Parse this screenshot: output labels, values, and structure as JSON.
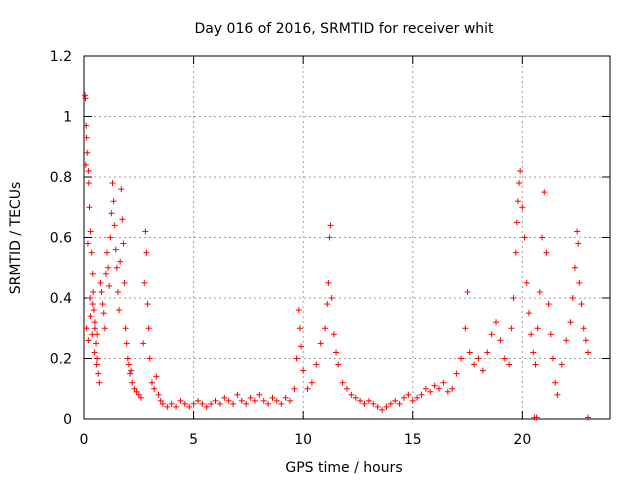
{
  "chart_data": {
    "type": "scatter",
    "title": "Day 016 of 2016, SRMTID for receiver whit",
    "xlabel": "GPS time / hours",
    "ylabel": "SRMTID / TECUs",
    "xlim": [
      0,
      24
    ],
    "ylim": [
      0,
      1.2
    ],
    "xticks": [
      "0",
      "5",
      "10",
      "15",
      "20"
    ],
    "yticks": [
      "0",
      "0.2",
      "0.4",
      "0.6",
      "0.8",
      "1",
      "1.2"
    ],
    "grid": true,
    "marker": "+",
    "marker_color": "#ff0000",
    "series": [
      {
        "name": "SRMTID",
        "points": [
          [
            0.05,
            1.07
          ],
          [
            0.07,
            1.06
          ],
          [
            0.1,
            0.97
          ],
          [
            0.12,
            0.93
          ],
          [
            0.15,
            0.88
          ],
          [
            0.2,
            0.82
          ],
          [
            0.22,
            0.78
          ],
          [
            0.25,
            0.7
          ],
          [
            0.3,
            0.62
          ],
          [
            0.35,
            0.55
          ],
          [
            0.4,
            0.48
          ],
          [
            0.42,
            0.42
          ],
          [
            0.45,
            0.36
          ],
          [
            0.5,
            0.3
          ],
          [
            0.55,
            0.25
          ],
          [
            0.6,
            0.2
          ],
          [
            0.65,
            0.15
          ],
          [
            0.7,
            0.12
          ],
          [
            0.08,
            0.84
          ],
          [
            0.18,
            0.58
          ],
          [
            0.28,
            0.4
          ],
          [
            0.38,
            0.28
          ],
          [
            0.48,
            0.22
          ],
          [
            0.58,
            0.18
          ],
          [
            0.12,
            0.3
          ],
          [
            0.2,
            0.26
          ],
          [
            0.3,
            0.34
          ],
          [
            0.4,
            0.38
          ],
          [
            0.5,
            0.32
          ],
          [
            0.6,
            0.28
          ],
          [
            0.75,
            0.45
          ],
          [
            0.8,
            0.42
          ],
          [
            0.85,
            0.38
          ],
          [
            0.9,
            0.35
          ],
          [
            0.95,
            0.3
          ],
          [
            1.0,
            0.48
          ],
          [
            1.05,
            0.55
          ],
          [
            1.1,
            0.5
          ],
          [
            1.15,
            0.44
          ],
          [
            1.2,
            0.6
          ],
          [
            1.25,
            0.68
          ],
          [
            1.3,
            0.78
          ],
          [
            1.35,
            0.72
          ],
          [
            1.4,
            0.64
          ],
          [
            1.45,
            0.56
          ],
          [
            1.5,
            0.5
          ],
          [
            1.55,
            0.42
          ],
          [
            1.6,
            0.36
          ],
          [
            1.65,
            0.52
          ],
          [
            1.7,
            0.76
          ],
          [
            1.75,
            0.66
          ],
          [
            1.8,
            0.58
          ],
          [
            1.85,
            0.45
          ],
          [
            1.9,
            0.3
          ],
          [
            1.95,
            0.25
          ],
          [
            2.0,
            0.2
          ],
          [
            2.05,
            0.18
          ],
          [
            2.1,
            0.15
          ],
          [
            2.15,
            0.16
          ],
          [
            2.2,
            0.12
          ],
          [
            2.3,
            0.1
          ],
          [
            2.4,
            0.09
          ],
          [
            2.5,
            0.08
          ],
          [
            2.6,
            0.07
          ],
          [
            2.7,
            0.25
          ],
          [
            2.75,
            0.45
          ],
          [
            2.8,
            0.62
          ],
          [
            2.85,
            0.55
          ],
          [
            2.9,
            0.38
          ],
          [
            2.95,
            0.3
          ],
          [
            3.0,
            0.2
          ],
          [
            3.1,
            0.12
          ],
          [
            3.2,
            0.1
          ],
          [
            3.3,
            0.14
          ],
          [
            3.4,
            0.08
          ],
          [
            3.5,
            0.06
          ],
          [
            3.6,
            0.05
          ],
          [
            3.8,
            0.04
          ],
          [
            4.0,
            0.05
          ],
          [
            4.2,
            0.04
          ],
          [
            4.4,
            0.06
          ],
          [
            4.6,
            0.05
          ],
          [
            4.8,
            0.04
          ],
          [
            5.0,
            0.05
          ],
          [
            5.2,
            0.06
          ],
          [
            5.4,
            0.05
          ],
          [
            5.6,
            0.04
          ],
          [
            5.8,
            0.05
          ],
          [
            6.0,
            0.06
          ],
          [
            6.2,
            0.05
          ],
          [
            6.4,
            0.07
          ],
          [
            6.6,
            0.06
          ],
          [
            6.8,
            0.05
          ],
          [
            7.0,
            0.08
          ],
          [
            7.2,
            0.06
          ],
          [
            7.4,
            0.05
          ],
          [
            7.6,
            0.07
          ],
          [
            7.8,
            0.06
          ],
          [
            8.0,
            0.08
          ],
          [
            8.2,
            0.06
          ],
          [
            8.4,
            0.05
          ],
          [
            8.6,
            0.07
          ],
          [
            8.8,
            0.06
          ],
          [
            9.0,
            0.05
          ],
          [
            9.2,
            0.07
          ],
          [
            9.4,
            0.06
          ],
          [
            9.6,
            0.1
          ],
          [
            9.7,
            0.2
          ],
          [
            9.8,
            0.36
          ],
          [
            9.85,
            0.3
          ],
          [
            9.9,
            0.24
          ],
          [
            10.0,
            0.16
          ],
          [
            10.2,
            0.1
          ],
          [
            10.4,
            0.12
          ],
          [
            10.6,
            0.18
          ],
          [
            10.8,
            0.25
          ],
          [
            11.0,
            0.3
          ],
          [
            11.1,
            0.38
          ],
          [
            11.15,
            0.45
          ],
          [
            11.2,
            0.6
          ],
          [
            11.25,
            0.64
          ],
          [
            11.3,
            0.4
          ],
          [
            11.4,
            0.28
          ],
          [
            11.5,
            0.22
          ],
          [
            11.6,
            0.18
          ],
          [
            11.8,
            0.12
          ],
          [
            12.0,
            0.1
          ],
          [
            12.2,
            0.08
          ],
          [
            12.4,
            0.07
          ],
          [
            12.6,
            0.06
          ],
          [
            12.8,
            0.05
          ],
          [
            13.0,
            0.06
          ],
          [
            13.2,
            0.05
          ],
          [
            13.4,
            0.04
          ],
          [
            13.6,
            0.03
          ],
          [
            13.8,
            0.04
          ],
          [
            14.0,
            0.05
          ],
          [
            14.2,
            0.06
          ],
          [
            14.4,
            0.05
          ],
          [
            14.6,
            0.07
          ],
          [
            14.8,
            0.08
          ],
          [
            15.0,
            0.06
          ],
          [
            15.2,
            0.07
          ],
          [
            15.4,
            0.08
          ],
          [
            15.6,
            0.1
          ],
          [
            15.8,
            0.09
          ],
          [
            16.0,
            0.11
          ],
          [
            16.2,
            0.1
          ],
          [
            16.4,
            0.12
          ],
          [
            16.6,
            0.09
          ],
          [
            16.8,
            0.1
          ],
          [
            17.0,
            0.15
          ],
          [
            17.2,
            0.2
          ],
          [
            17.4,
            0.3
          ],
          [
            17.5,
            0.42
          ],
          [
            17.6,
            0.22
          ],
          [
            17.8,
            0.18
          ],
          [
            18.0,
            0.2
          ],
          [
            18.2,
            0.16
          ],
          [
            18.4,
            0.22
          ],
          [
            18.6,
            0.28
          ],
          [
            18.8,
            0.32
          ],
          [
            19.0,
            0.26
          ],
          [
            19.2,
            0.2
          ],
          [
            19.4,
            0.18
          ],
          [
            19.5,
            0.3
          ],
          [
            19.6,
            0.4
          ],
          [
            19.7,
            0.55
          ],
          [
            19.75,
            0.65
          ],
          [
            19.8,
            0.72
          ],
          [
            19.85,
            0.78
          ],
          [
            19.9,
            0.82
          ],
          [
            20.0,
            0.7
          ],
          [
            20.1,
            0.6
          ],
          [
            20.2,
            0.45
          ],
          [
            20.3,
            0.35
          ],
          [
            20.4,
            0.28
          ],
          [
            20.5,
            0.22
          ],
          [
            20.6,
            0.18
          ],
          [
            20.7,
            0.3
          ],
          [
            20.8,
            0.42
          ],
          [
            20.9,
            0.6
          ],
          [
            21.0,
            0.75
          ],
          [
            21.1,
            0.55
          ],
          [
            21.2,
            0.38
          ],
          [
            21.3,
            0.28
          ],
          [
            21.4,
            0.2
          ],
          [
            21.5,
            0.12
          ],
          [
            21.6,
            0.08
          ],
          [
            21.8,
            0.18
          ],
          [
            22.0,
            0.26
          ],
          [
            22.2,
            0.32
          ],
          [
            22.3,
            0.4
          ],
          [
            22.4,
            0.5
          ],
          [
            22.5,
            0.62
          ],
          [
            22.55,
            0.58
          ],
          [
            22.6,
            0.45
          ],
          [
            22.7,
            0.38
          ],
          [
            22.8,
            0.3
          ],
          [
            22.9,
            0.26
          ],
          [
            23.0,
            0.22
          ],
          [
            20.55,
            0.005
          ],
          [
            20.65,
            0.005
          ],
          [
            23.0,
            0.005
          ]
        ]
      }
    ]
  }
}
